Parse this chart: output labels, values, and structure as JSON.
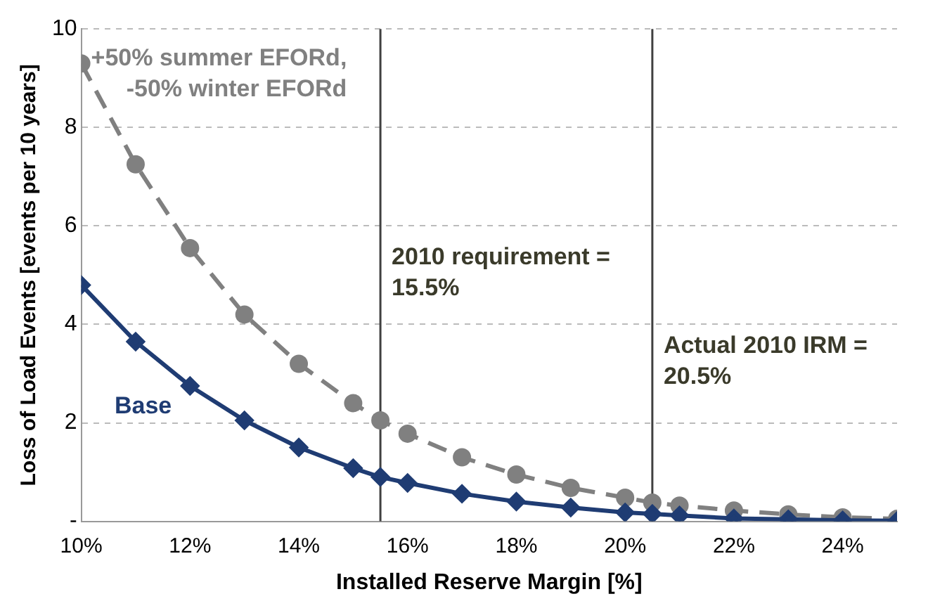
{
  "chart_data": {
    "type": "line",
    "xlabel": "Installed Reserve Margin [%]",
    "ylabel": "Loss of Load Events [events per 10 years]",
    "x": [
      10,
      11,
      12,
      13,
      14,
      15,
      15.5,
      16,
      17,
      18,
      19,
      20,
      20.5,
      21,
      22,
      23,
      24,
      25
    ],
    "series": [
      {
        "name": "+50% summer EFORd, -50% winter EFORd",
        "color": "#808080",
        "marker": "circle",
        "line_style": "dashed",
        "values": [
          9.3,
          7.25,
          5.55,
          4.2,
          3.2,
          2.4,
          2.05,
          1.78,
          1.3,
          0.95,
          0.68,
          0.48,
          0.38,
          0.32,
          0.22,
          0.14,
          0.08,
          0.05
        ]
      },
      {
        "name": "Base",
        "color": "#1f3c73",
        "marker": "diamond",
        "line_style": "solid",
        "values": [
          4.8,
          3.65,
          2.75,
          2.05,
          1.5,
          1.08,
          0.9,
          0.78,
          0.56,
          0.4,
          0.28,
          0.18,
          0.15,
          0.12,
          0.06,
          0.04,
          0.02,
          0.01
        ]
      }
    ],
    "xlim": [
      10,
      25
    ],
    "xticks": [
      {
        "value": 10,
        "label": "10%"
      },
      {
        "value": 12,
        "label": "12%"
      },
      {
        "value": 14,
        "label": "14%"
      },
      {
        "value": 16,
        "label": "16%"
      },
      {
        "value": 18,
        "label": "18%"
      },
      {
        "value": 20,
        "label": "20%"
      },
      {
        "value": 22,
        "label": "22%"
      },
      {
        "value": 24,
        "label": "24%"
      }
    ],
    "ylim": [
      0,
      10
    ],
    "yticks": [
      {
        "value": 0,
        "label": "-"
      },
      2,
      4,
      6,
      8,
      10
    ],
    "grid": "y",
    "legend": false,
    "ref_lines": [
      {
        "axis": "x",
        "value": 15.5,
        "label": "2010 requirement = 15.5%",
        "color": "#404040"
      },
      {
        "axis": "x",
        "value": 20.5,
        "label": "Actual 2010 IRM = 20.5%",
        "color": "#404040"
      }
    ]
  }
}
